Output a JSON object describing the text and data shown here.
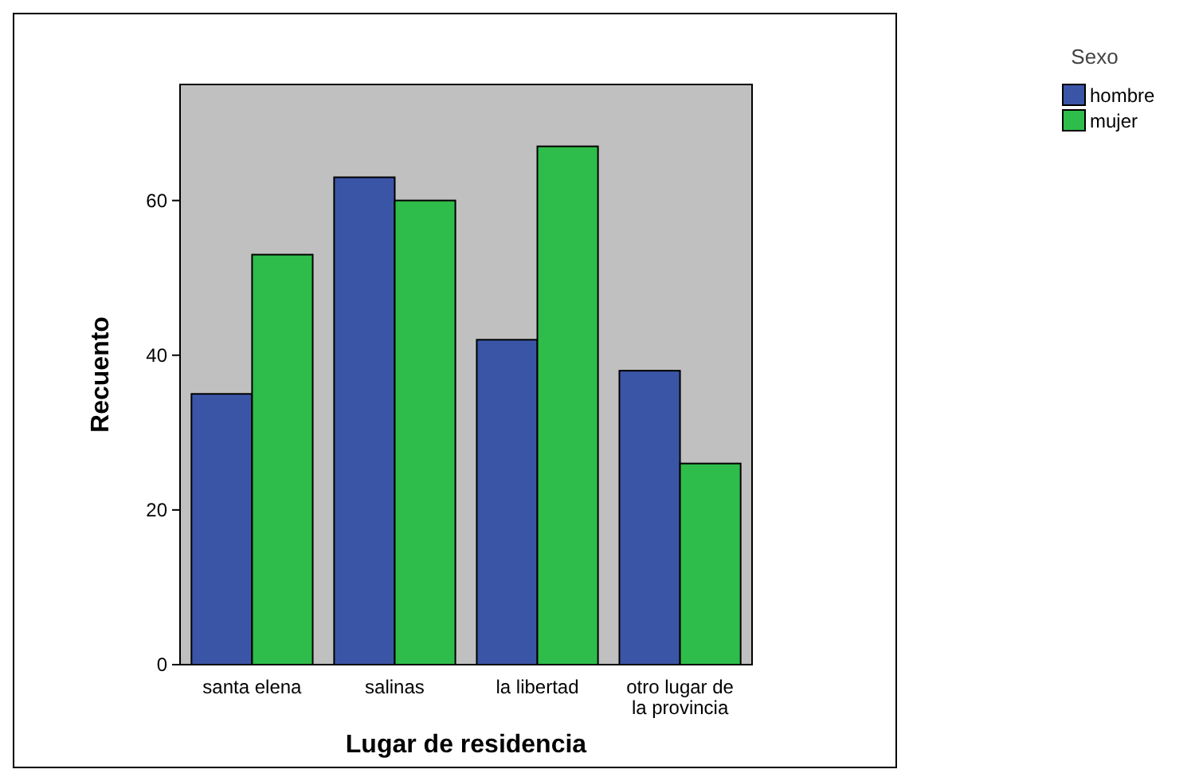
{
  "chart_data": {
    "type": "bar",
    "xlabel": "Lugar de residencia",
    "ylabel": "Recuento",
    "legend_title": "Sexo",
    "legend": "top right",
    "categories": [
      "santa elena",
      "salinas",
      "la libertad",
      "otro lugar de la provincia"
    ],
    "series": [
      {
        "name": "hombre",
        "color": "#3b55a6",
        "values": [
          35,
          63,
          42,
          38
        ]
      },
      {
        "name": "mujer",
        "color": "#2ebd4a",
        "values": [
          53,
          60,
          67,
          26
        ]
      }
    ],
    "ylim": [
      0,
      75
    ],
    "yticks": [
      0,
      20,
      40,
      60
    ]
  }
}
